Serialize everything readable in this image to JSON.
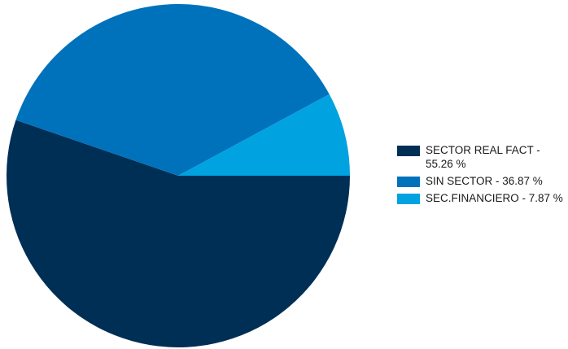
{
  "chart_data": {
    "type": "pie",
    "slices": [
      {
        "label": "SECTOR REAL FACT - 55.26 %",
        "value": 55.26,
        "color": "#002f56"
      },
      {
        "label": "SIN SECTOR - 36.87 %",
        "value": 36.87,
        "color": "#0072bc"
      },
      {
        "label": "SEC.FINANCIERO - 7.87 %",
        "value": 7.87,
        "color": "#00a3e0"
      }
    ],
    "start": "3 o'clock",
    "direction": "clockwise",
    "legend_position": "right"
  }
}
